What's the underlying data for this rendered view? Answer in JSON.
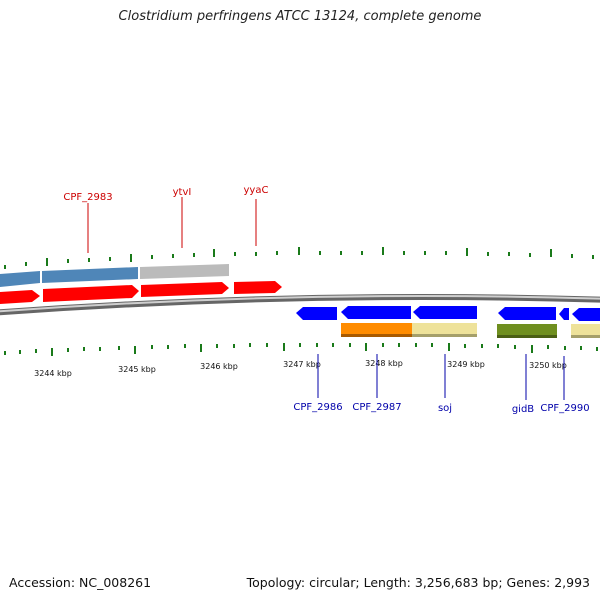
{
  "title": "Clostridium perfringens ATCC 13124, complete genome",
  "footer": {
    "accession": "Accession: NC_008261",
    "summary": "Topology: circular; Length: 3,256,683 bp; Genes: 2,993"
  },
  "colors": {
    "forward_cds": "#ff0000",
    "reverse_cds": "#0000ff",
    "tick": "#1a7a1a",
    "backbone": "#888888",
    "forward_label": "#cc0000",
    "reverse_label": "#0000aa"
  },
  "kbp_labels": [
    "3244 kbp",
    "3245 kbp",
    "3246 kbp",
    "3247 kbp",
    "3248 kbp",
    "3249 kbp",
    "3250 kbp"
  ],
  "forward_gene_labels": [
    "CPF_2983",
    "ytvI",
    "yyaC"
  ],
  "reverse_gene_labels": [
    "CPF_2986",
    "CPF_2987",
    "soj",
    "gidB",
    "CPF_2990"
  ],
  "cog_colors": [
    "#4f86b8",
    "#bbbbbb",
    "#ff8c00",
    "#eee29a",
    "#6f8f1f",
    "#eee29a"
  ]
}
